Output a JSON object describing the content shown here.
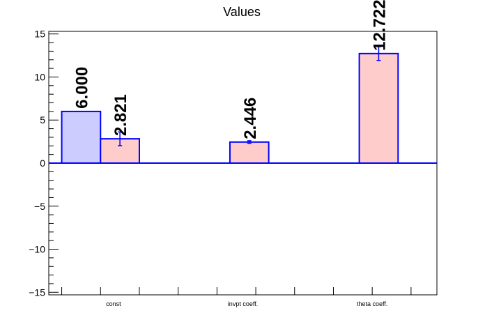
{
  "chart_data": {
    "type": "bar",
    "title": "Values",
    "xlabel": "",
    "ylabel": "",
    "ylim": [
      -15.3,
      15.3
    ],
    "yticks": [
      -15,
      -10,
      -5,
      0,
      5,
      10,
      15
    ],
    "ytick_labels": [
      "−15",
      "−10",
      "−5",
      "0",
      "5",
      "10",
      "15"
    ],
    "categories": [
      "const",
      "invpt coeff.",
      "theta coeff."
    ],
    "series": [
      {
        "color": "#ccccff",
        "values": [
          6.0,
          null,
          null
        ],
        "errors": [
          0,
          null,
          null
        ],
        "labels": [
          "6.000",
          null,
          null
        ]
      },
      {
        "color": "#ffcccc",
        "values": [
          2.821,
          2.446,
          12.722
        ],
        "errors": [
          0.8,
          0.15,
          0.8
        ],
        "labels": [
          "2.821",
          "2.446",
          "12.722"
        ]
      }
    ],
    "bar_edge_color": "#0000ff",
    "grid": false,
    "legend": "none"
  }
}
